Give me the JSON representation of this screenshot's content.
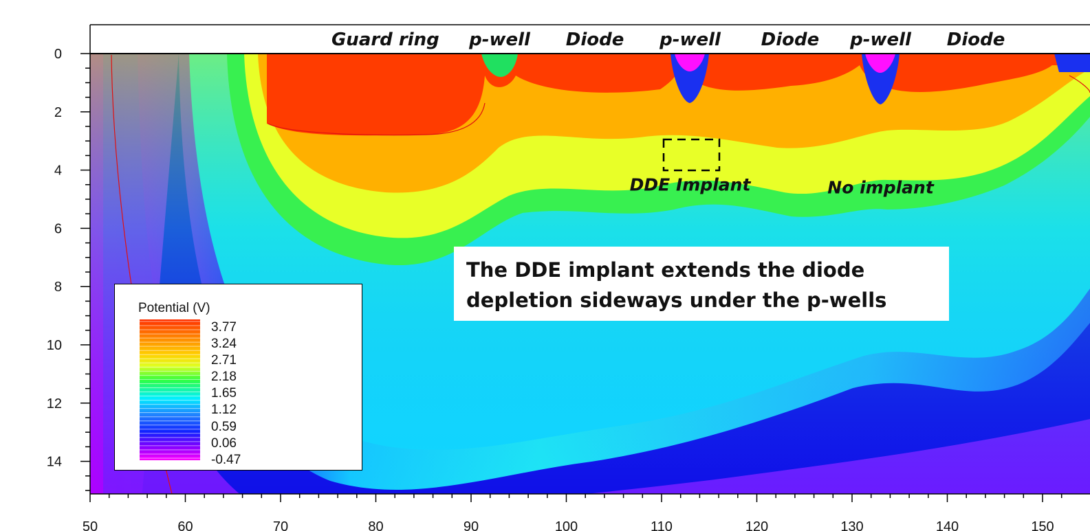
{
  "chart_data": {
    "type": "heatmap",
    "title": "",
    "xlabel": "",
    "ylabel": "",
    "xlim": [
      50,
      152
    ],
    "ylim": [
      0,
      15
    ],
    "y_inverted": true,
    "x_ticks": [
      "50",
      "60",
      "70",
      "80",
      "90",
      "100",
      "110",
      "120",
      "130",
      "140",
      "150"
    ],
    "y_ticks": [
      "0",
      "2",
      "4",
      "6",
      "8",
      "10",
      "12",
      "14"
    ],
    "colorbar": {
      "title": "Potential (V)",
      "levels": [
        "3.77",
        "3.24",
        "2.71",
        "2.18",
        "1.65",
        "1.12",
        "0.59",
        "0.06",
        "-0.47"
      ],
      "vmin": -0.47,
      "vmax": 3.77,
      "colormap": [
        "#ff00ff",
        "#8000ff",
        "#0000ff",
        "#00ffff",
        "#00ff80",
        "#ffff00",
        "#ff8000",
        "#ff3000"
      ]
    },
    "region_labels": [
      {
        "text": "Guard ring",
        "x": 81
      },
      {
        "text": "p-well",
        "x": 93
      },
      {
        "text": "Diode",
        "x": 103
      },
      {
        "text": "p-well",
        "x": 113
      },
      {
        "text": "Diode",
        "x": 123.5
      },
      {
        "text": "p-well",
        "x": 133
      },
      {
        "text": "Diode",
        "x": 143
      }
    ],
    "annotations": [
      {
        "text": "DDE Implant",
        "x": 113,
        "y": 4.7
      },
      {
        "text": "No implant",
        "x": 133,
        "y": 4.8
      }
    ],
    "implant_box": {
      "x": [
        110.3,
        116.2
      ],
      "y": [
        2.9,
        4.0
      ]
    },
    "p_wells": [
      {
        "x": [
          91,
          95
        ],
        "depth": 0.85
      },
      {
        "x": [
          111,
          115
        ],
        "depth": 1.1
      },
      {
        "x": [
          131,
          135
        ],
        "depth": 1.2
      }
    ],
    "callout": [
      "The DDE implant extends the diode",
      "depletion sideways under the p-wells"
    ]
  }
}
